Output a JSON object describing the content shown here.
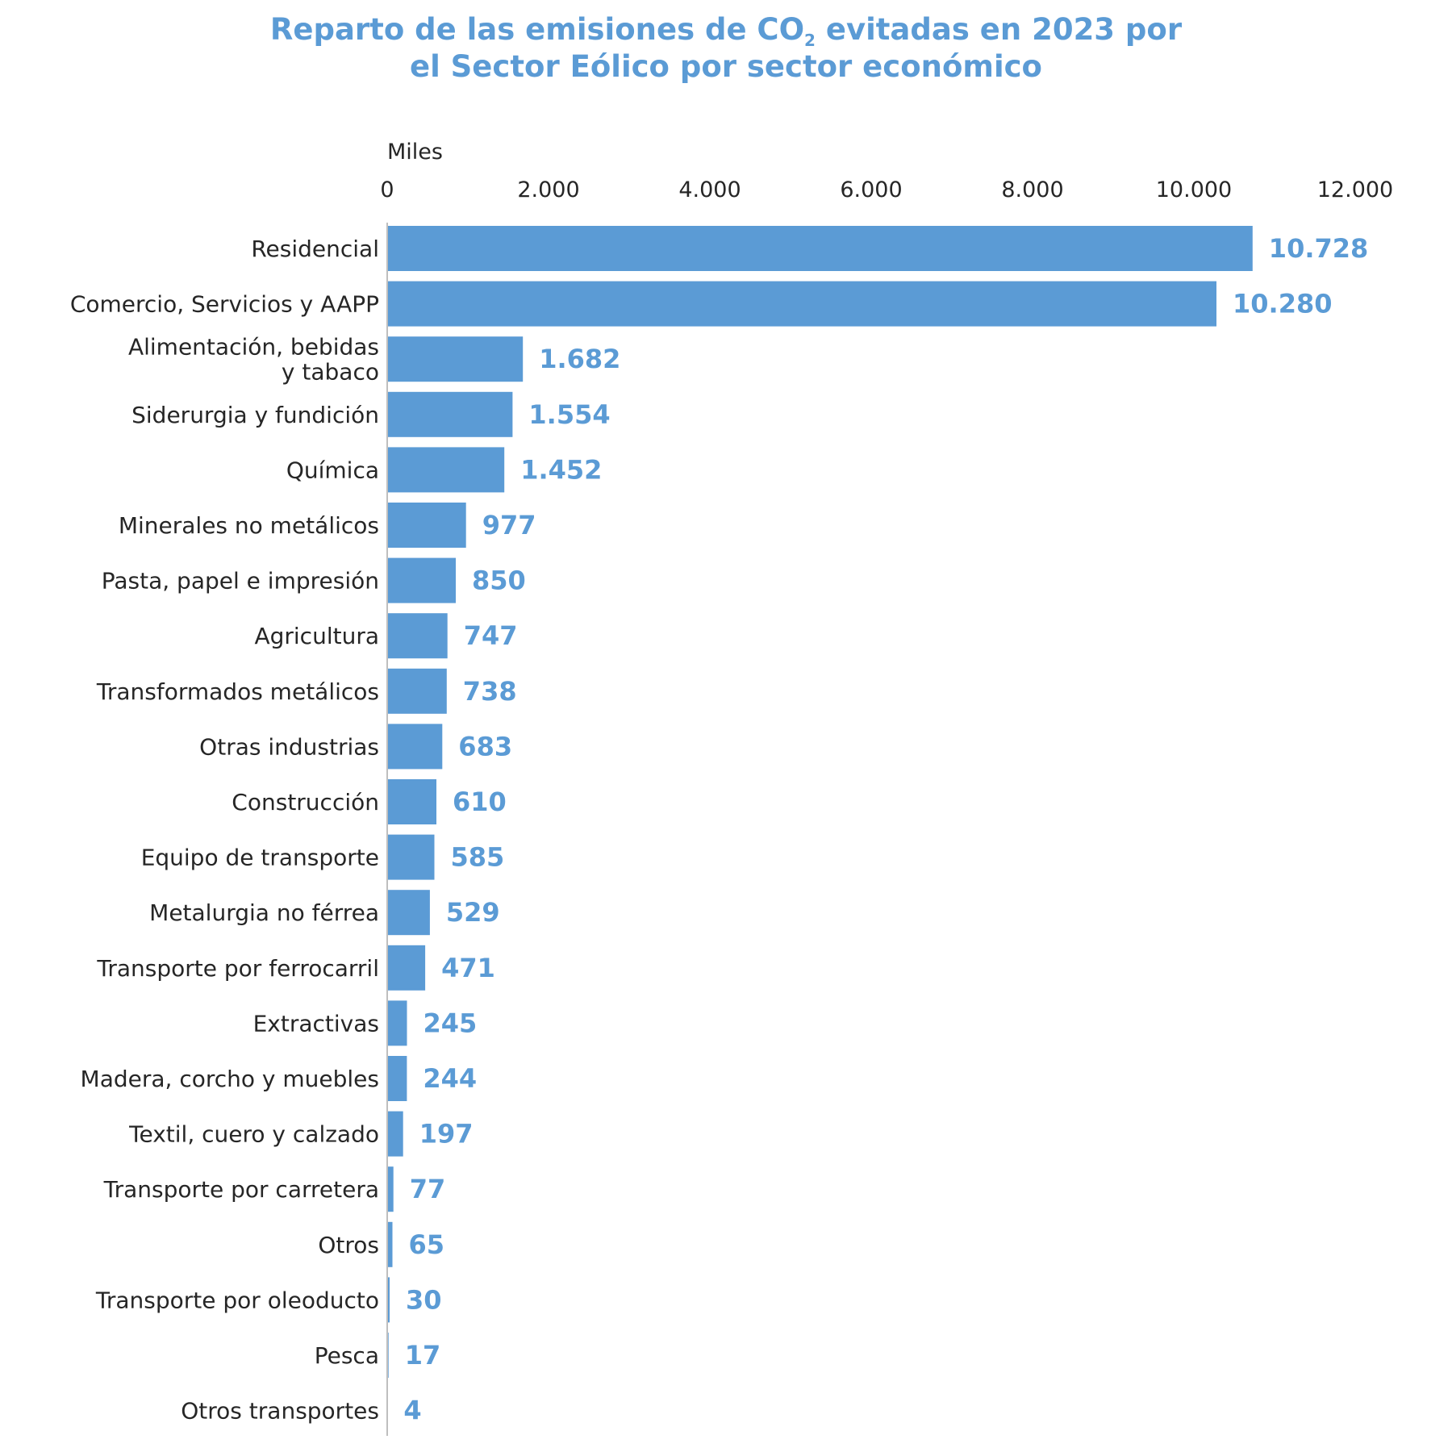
{
  "chart_data": {
    "type": "bar",
    "orientation": "horizontal",
    "title_part1": "Reparto de las emisiones de CO",
    "title_subscript": "2",
    "title_part2": " evitadas en 2023 por",
    "title_line2": "el Sector Eólico por sector económico",
    "unit_label": "Miles",
    "xlim": [
      0,
      12000
    ],
    "xticks": [
      0,
      2000,
      4000,
      6000,
      8000,
      10000,
      12000
    ],
    "xtick_labels": [
      "0",
      "2.000",
      "4.000",
      "6.000",
      "8.000",
      "10.000",
      "12.000"
    ],
    "categories": [
      "Residencial",
      "Comercio, Servicios y AAPP",
      [
        "Alimentación, bebidas",
        "y tabaco"
      ],
      "Siderurgia y fundición",
      "Química",
      "Minerales no metálicos",
      "Pasta, papel e impresión",
      "Agricultura",
      "Transformados metálicos",
      "Otras industrias",
      "Construcción",
      "Equipo de transporte",
      "Metalurgia no férrea",
      "Transporte por ferrocarril",
      "Extractivas",
      "Madera, corcho y muebles",
      "Textil, cuero y calzado",
      "Transporte por carretera",
      "Otros",
      "Transporte por oleoducto",
      "Pesca",
      "Otros transportes"
    ],
    "values": [
      10728,
      10280,
      1682,
      1554,
      1452,
      977,
      850,
      747,
      738,
      683,
      610,
      585,
      529,
      471,
      245,
      244,
      197,
      77,
      65,
      30,
      17,
      4
    ],
    "value_labels": [
      "10.728",
      "10.280",
      "1.682",
      "1.554",
      "1.452",
      "977",
      "850",
      "747",
      "738",
      "683",
      "610",
      "585",
      "529",
      "471",
      "245",
      "244",
      "197",
      "77",
      "65",
      "30",
      "17",
      "4"
    ],
    "bar_color": "#5b9bd5",
    "value_label_color": "#5b9bd5",
    "title_color": "#5b9bd5",
    "grid": false,
    "legend": "none"
  }
}
